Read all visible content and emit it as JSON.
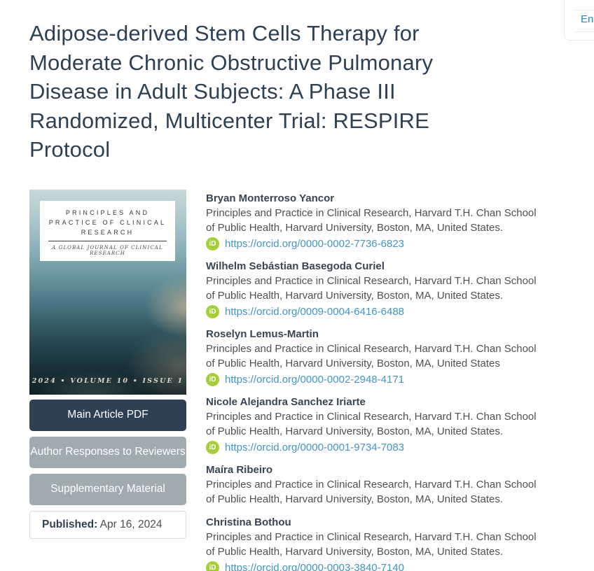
{
  "lang_card": {
    "label": "En"
  },
  "title_lines": [
    "Adipose-derived Stem Cells Therapy for",
    "Moderate Chronic Obstructive Pulmonary",
    "Disease in Adult Subjects: A Phase III",
    "Randomized, Multicenter Trial: RESPIRE",
    "Protocol"
  ],
  "cover": {
    "journal_title_lines": [
      "PRINCIPLES AND",
      "PRACTICE OF CLINICAL",
      "RESEARCH"
    ],
    "journal_subtitle": "A GLOBAL JOURNAL OF CLINICAL RESEARCH",
    "issue_line": "2024  • VOLUME 10 • ISSUE 1"
  },
  "sidebar": {
    "buttons": [
      {
        "label": "Main Article PDF",
        "style": "dark",
        "name": "main-article-pdf-button"
      },
      {
        "label": "Author Responses to Reviewers",
        "style": "gray",
        "name": "author-responses-button"
      },
      {
        "label": "Supplementary Material",
        "style": "gray",
        "name": "supplementary-material-button"
      }
    ],
    "published_label": "Published:",
    "published_date": " Apr 16, 2024"
  },
  "orcid_icon_text": "iD",
  "authors": [
    {
      "name": "Bryan Monterroso Yancor",
      "affiliation_lines": [
        "Principles and Practice in Clinical Research, Harvard T.H. Chan School",
        "of Public Health, Harvard University, Boston, MA, United States."
      ],
      "orcid": "https://orcid.org/0000-0002-7736-6823"
    },
    {
      "name": "Wilhelm Sebástian Basegoda Curiel",
      "affiliation_lines": [
        "Principles and Practice in Clinical Research, Harvard T.H. Chan School",
        "of Public Health, Harvard University, Boston, MA, United States."
      ],
      "orcid": "https://orcid.org/0009-0004-6416-6488"
    },
    {
      "name": "Roselyn Lemus-Martin",
      "affiliation_lines": [
        "Principles and Practice in Clinical Research, Harvard T.H. Chan School",
        "of Public Health, Harvard University, Boston, MA, United States"
      ],
      "orcid": "https://orcid.org/0000-0002-2948-4171"
    },
    {
      "name": "Nicole Alejandra Sanchez Iriarte",
      "affiliation_lines": [
        "Principles and Practice in Clinical Research, Harvard T.H. Chan School",
        "of Public Health, Harvard University, Boston, MA, United States.",
        ""
      ],
      "orcid": "https://orcid.org/0000-0001-9734-7083"
    },
    {
      "name": "Maíra Ribeiro",
      "affiliation_lines": [
        "Principles and Practice in Clinical Research, Harvard T.H. Chan School",
        "of Public Health, Harvard University, Boston, MA, United States."
      ],
      "orcid": null
    },
    {
      "name": "Christina Bothou",
      "affiliation_lines": [
        "Principles and Practice in Clinical Research, Harvard T.H. Chan School",
        "of Public Health, Harvard University, Boston, MA, United States."
      ],
      "orcid": "https://orcid.org/0000-0003-3840-7140"
    }
  ],
  "colors": {
    "title_text": "#2e4154",
    "dark_button": "#2e4154",
    "gray_button": "#9faab1",
    "link_blue": "#4295c6",
    "orcid_green": "#a6ce39",
    "lang_teal": "#2b8ea8"
  }
}
